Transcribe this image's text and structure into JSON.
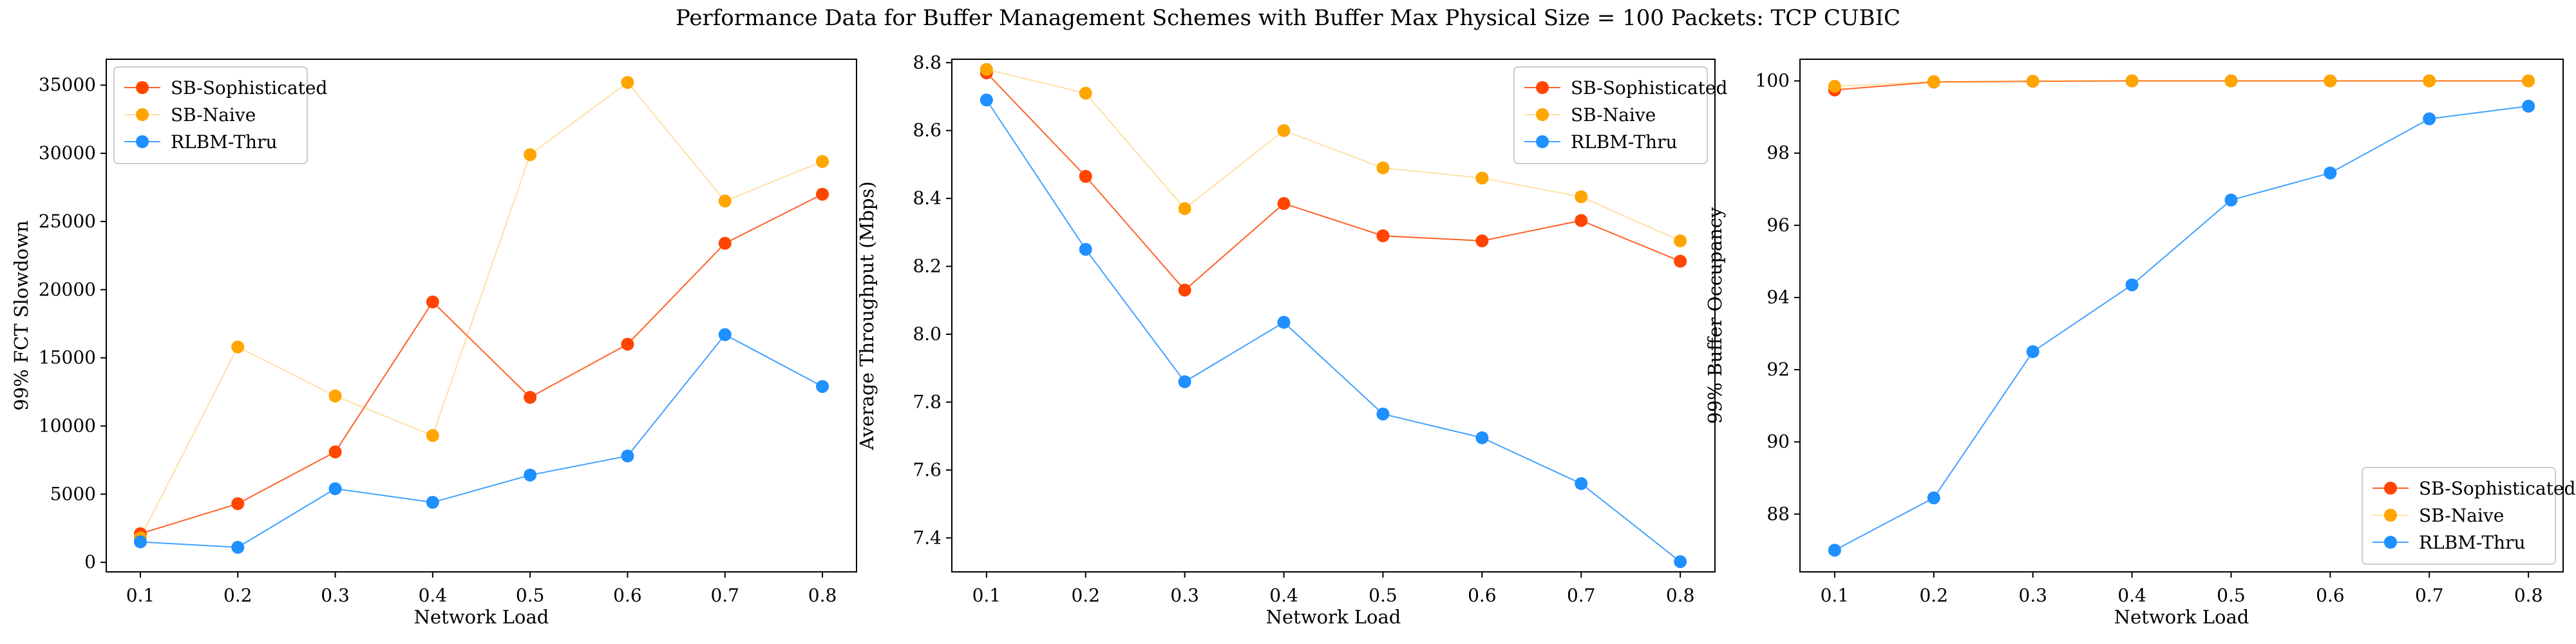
{
  "figure": {
    "title": "Performance Data for Buffer Management Schemes with Buffer Max Physical Size = 100 Packets: TCP CUBIC"
  },
  "colors": {
    "SB-Sophisticated": "#ff4500",
    "SB-Naive": "#ffa500",
    "RLBM-Thru": "#1e90ff"
  },
  "chart_data": [
    {
      "type": "line",
      "title": "",
      "xlabel": "Network Load",
      "ylabel": "99% FCT Slowdown",
      "x": [
        0.1,
        0.2,
        0.3,
        0.4,
        0.5,
        0.6,
        0.7,
        0.8
      ],
      "xticks": [
        "0.1",
        "0.2",
        "0.3",
        "0.4",
        "0.5",
        "0.6",
        "0.7",
        "0.8"
      ],
      "xlim": [
        0.065,
        0.835
      ],
      "ylim": [
        -700,
        36900
      ],
      "yticks": [
        "0",
        "5000",
        "10000",
        "15000",
        "20000",
        "25000",
        "30000",
        "35000"
      ],
      "ytick_values": [
        0,
        5000,
        10000,
        15000,
        20000,
        25000,
        30000,
        35000
      ],
      "legend": "top-left",
      "grid": false,
      "series": [
        {
          "name": "SB-Sophisticated",
          "values": [
            2100,
            4300,
            8100,
            19100,
            12100,
            16000,
            23400,
            27000
          ]
        },
        {
          "name": "SB-Naive",
          "values": [
            1800,
            15800,
            12200,
            9300,
            29900,
            35200,
            26500,
            29400
          ]
        },
        {
          "name": "RLBM-Thru",
          "values": [
            1500,
            1100,
            5400,
            4400,
            6400,
            7800,
            16700,
            12900
          ]
        }
      ]
    },
    {
      "type": "line",
      "title": "",
      "xlabel": "Network Load",
      "ylabel": "Average Throughput (Mbps)",
      "x": [
        0.1,
        0.2,
        0.3,
        0.4,
        0.5,
        0.6,
        0.7,
        0.8
      ],
      "xticks": [
        "0.1",
        "0.2",
        "0.3",
        "0.4",
        "0.5",
        "0.6",
        "0.7",
        "0.8"
      ],
      "xlim": [
        0.065,
        0.835
      ],
      "ylim": [
        7.3,
        8.81
      ],
      "yticks": [
        "7.4",
        "7.6",
        "7.8",
        "8.0",
        "8.2",
        "8.4",
        "8.6",
        "8.8"
      ],
      "ytick_values": [
        7.4,
        7.6,
        7.8,
        8.0,
        8.2,
        8.4,
        8.6,
        8.8
      ],
      "legend": "top-right",
      "grid": false,
      "series": [
        {
          "name": "SB-Sophisticated",
          "values": [
            8.77,
            8.465,
            8.13,
            8.385,
            8.29,
            8.275,
            8.335,
            8.215
          ]
        },
        {
          "name": "SB-Naive",
          "values": [
            8.78,
            8.71,
            8.37,
            8.6,
            8.49,
            8.46,
            8.405,
            8.275
          ]
        },
        {
          "name": "RLBM-Thru",
          "values": [
            8.69,
            8.25,
            7.86,
            8.035,
            7.765,
            7.695,
            7.56,
            7.33
          ]
        }
      ]
    },
    {
      "type": "line",
      "title": "",
      "xlabel": "Network Load",
      "ylabel": "99% Buffer Occupancy",
      "x": [
        0.1,
        0.2,
        0.3,
        0.4,
        0.5,
        0.6,
        0.7,
        0.8
      ],
      "xticks": [
        "0.1",
        "0.2",
        "0.3",
        "0.4",
        "0.5",
        "0.6",
        "0.7",
        "0.8"
      ],
      "xlim": [
        0.065,
        0.835
      ],
      "ylim": [
        86.4,
        100.6
      ],
      "yticks": [
        "88",
        "90",
        "92",
        "94",
        "96",
        "98",
        "100"
      ],
      "ytick_values": [
        88,
        90,
        92,
        94,
        96,
        98,
        100
      ],
      "legend": "bottom-right",
      "grid": false,
      "series": [
        {
          "name": "SB-Sophisticated",
          "values": [
            99.75,
            99.97,
            99.99,
            100.0,
            100.0,
            100.0,
            100.0,
            100.0
          ]
        },
        {
          "name": "SB-Naive",
          "values": [
            99.85,
            99.98,
            99.99,
            100.0,
            100.0,
            100.0,
            100.0,
            100.0
          ]
        },
        {
          "name": "RLBM-Thru",
          "values": [
            87.0,
            88.45,
            92.5,
            94.35,
            96.7,
            97.45,
            98.95,
            99.3
          ]
        }
      ]
    }
  ]
}
